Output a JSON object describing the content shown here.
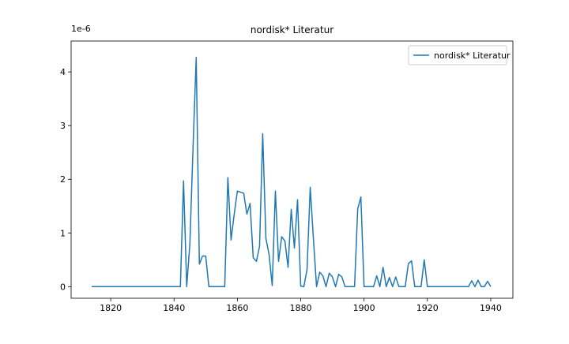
{
  "chart_data": {
    "type": "line",
    "title": "nordisk* Literatur",
    "y_offset_label": "1e-6",
    "x": [
      1814,
      1815,
      1816,
      1817,
      1818,
      1819,
      1820,
      1821,
      1822,
      1823,
      1824,
      1825,
      1826,
      1827,
      1828,
      1829,
      1830,
      1831,
      1832,
      1833,
      1834,
      1835,
      1836,
      1837,
      1838,
      1839,
      1840,
      1841,
      1842,
      1843,
      1844,
      1845,
      1846,
      1847,
      1848,
      1849,
      1850,
      1851,
      1852,
      1853,
      1854,
      1855,
      1856,
      1857,
      1858,
      1859,
      1860,
      1861,
      1862,
      1863,
      1864,
      1865,
      1866,
      1867,
      1868,
      1869,
      1870,
      1871,
      1872,
      1873,
      1874,
      1875,
      1876,
      1877,
      1878,
      1879,
      1880,
      1881,
      1882,
      1883,
      1884,
      1885,
      1886,
      1887,
      1888,
      1889,
      1890,
      1891,
      1892,
      1893,
      1894,
      1895,
      1896,
      1897,
      1898,
      1899,
      1900,
      1901,
      1902,
      1903,
      1904,
      1905,
      1906,
      1907,
      1908,
      1909,
      1910,
      1911,
      1912,
      1913,
      1914,
      1915,
      1916,
      1917,
      1918,
      1919,
      1920,
      1921,
      1922,
      1923,
      1924,
      1925,
      1926,
      1927,
      1928,
      1929,
      1930,
      1931,
      1932,
      1933,
      1934,
      1935,
      1936,
      1937,
      1938,
      1939,
      1940
    ],
    "series": [
      {
        "name": "nordisk* Literatur",
        "color": "#1f77b4",
        "values": [
          0,
          0,
          0,
          0,
          0,
          0,
          0,
          0,
          0,
          0,
          0,
          0,
          0,
          0,
          0,
          0,
          0,
          0,
          0,
          0,
          0,
          0,
          0,
          0,
          0,
          0,
          0,
          0,
          0,
          1.97,
          0,
          0.8,
          2.6,
          4.27,
          0.42,
          0.57,
          0.57,
          0,
          0,
          0,
          0,
          0,
          0,
          2.03,
          0.87,
          1.35,
          1.78,
          1.76,
          1.74,
          1.35,
          1.55,
          0.54,
          0.47,
          0.75,
          2.85,
          0.9,
          0.6,
          0.02,
          1.78,
          0.47,
          0.93,
          0.85,
          0.36,
          1.44,
          0.72,
          1.62,
          0.01,
          0,
          0.32,
          1.85,
          0.9,
          0,
          0.27,
          0.2,
          0,
          0.25,
          0.18,
          0,
          0.23,
          0.18,
          0,
          0,
          0,
          0,
          1.45,
          1.67,
          0,
          0,
          0,
          0,
          0.2,
          0,
          0.36,
          0,
          0.17,
          0,
          0.18,
          0,
          0,
          0,
          0.43,
          0.48,
          0,
          0,
          0,
          0.5,
          0,
          0,
          0,
          0,
          0,
          0,
          0,
          0,
          0,
          0,
          0,
          0,
          0,
          0,
          0.11,
          0,
          0.12,
          0,
          0,
          0.1,
          0
        ]
      }
    ],
    "xlim": [
      1807.5,
      1947
    ],
    "ylim": [
      -0.216,
      4.575
    ],
    "xticks": [
      1820,
      1840,
      1860,
      1880,
      1900,
      1920,
      1940
    ],
    "yticks": [
      0,
      1,
      2,
      3,
      4
    ],
    "legend": "upper right"
  }
}
